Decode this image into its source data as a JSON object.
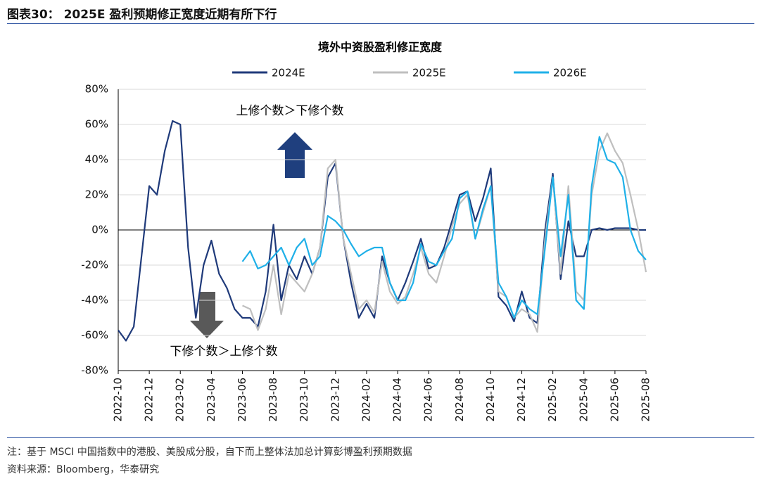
{
  "header": "图表30： 2025E 盈利预期修正宽度近期有所下行",
  "footer": {
    "note": "注：基于 MSCI 中国指数中的港股、美股成分股，自下而上整体法加总计算彭博盈利预期数据",
    "source": "资料来源：Bloomberg，华泰研究"
  },
  "chart_data": {
    "type": "line",
    "title": "境外中资股盈利修正宽度",
    "annotations": [
      "上修个数＞下修个数",
      "下修个数＞上修个数"
    ],
    "categories": [
      "2022-10",
      null,
      null,
      null,
      "2022-12",
      null,
      null,
      null,
      "2023-02",
      null,
      null,
      null,
      "2023-04",
      null,
      null,
      null,
      "2023-06",
      null,
      null,
      null,
      "2023-08",
      null,
      null,
      null,
      "2023-10",
      null,
      null,
      null,
      "2023-12",
      null,
      null,
      null,
      "2024-02",
      null,
      null,
      null,
      "2024-04",
      null,
      null,
      null,
      "2024-06",
      null,
      null,
      null,
      "2024-08",
      null,
      null,
      null,
      "2024-10",
      null,
      null,
      null,
      "2024-12",
      null,
      null,
      null,
      "2025-02",
      null,
      null,
      null,
      "2025-04",
      null,
      null,
      null,
      "2025-06",
      null,
      null,
      null,
      "2025-08"
    ],
    "series": [
      {
        "name": "2024E",
        "color": "#1f3a7a",
        "values": [
          -57,
          -63,
          -55,
          -15,
          25,
          20,
          45,
          62,
          60,
          -10,
          -50,
          -20,
          -6,
          -25,
          -33,
          -45,
          -50,
          -50,
          -55,
          -35,
          3,
          -40,
          -20,
          -28,
          -15,
          -25,
          -10,
          30,
          38,
          -5,
          -30,
          -50,
          -42,
          -50,
          -15,
          -30,
          -40,
          -30,
          -18,
          -5,
          -22,
          -20,
          -10,
          5,
          20,
          22,
          5,
          18,
          35,
          -38,
          -43,
          -52,
          -35,
          -50,
          -53,
          0,
          32,
          -28,
          5,
          -15,
          -15,
          0,
          1,
          0,
          1,
          1,
          1,
          0,
          0
        ]
      },
      {
        "name": "2025E",
        "color": "#bfbfbf",
        "values": [
          null,
          null,
          null,
          null,
          null,
          null,
          null,
          null,
          null,
          null,
          null,
          null,
          null,
          null,
          null,
          null,
          -43,
          -45,
          -57,
          -45,
          -20,
          -48,
          -25,
          -30,
          -35,
          -25,
          -10,
          35,
          40,
          -5,
          -25,
          -45,
          -40,
          -47,
          -18,
          -35,
          -42,
          -38,
          -25,
          -10,
          -25,
          -30,
          -15,
          2,
          15,
          20,
          -5,
          10,
          25,
          -35,
          -38,
          -50,
          -45,
          -48,
          -58,
          -5,
          30,
          -25,
          25,
          -35,
          -40,
          20,
          45,
          55,
          45,
          38,
          20,
          0,
          -24
        ]
      },
      {
        "name": "2026E",
        "color": "#1fb0e8",
        "values": [
          null,
          null,
          null,
          null,
          null,
          null,
          null,
          null,
          null,
          null,
          null,
          null,
          null,
          null,
          null,
          null,
          -18,
          -12,
          -22,
          -20,
          -15,
          -10,
          -20,
          -10,
          -5,
          -20,
          -15,
          8,
          5,
          0,
          -8,
          -15,
          -12,
          -10,
          -10,
          -30,
          -40,
          -40,
          -30,
          -8,
          -18,
          -20,
          -12,
          -5,
          18,
          22,
          -5,
          12,
          25,
          -30,
          -38,
          -50,
          -40,
          -45,
          -48,
          -10,
          30,
          -15,
          20,
          -40,
          -45,
          25,
          53,
          40,
          38,
          30,
          0,
          -12,
          -17
        ]
      }
    ],
    "ylim": [
      -80,
      80
    ],
    "yticks": [
      {
        "value": -80,
        "label": "-80%"
      },
      {
        "value": -60,
        "label": "-60%"
      },
      {
        "value": -40,
        "label": "-40%"
      },
      {
        "value": -20,
        "label": "-20%"
      },
      {
        "value": 0,
        "label": "0%"
      },
      {
        "value": 20,
        "label": "20%"
      },
      {
        "value": 40,
        "label": "40%"
      },
      {
        "value": 60,
        "label": "60%"
      },
      {
        "value": 80,
        "label": "80%"
      }
    ],
    "grid": true
  }
}
